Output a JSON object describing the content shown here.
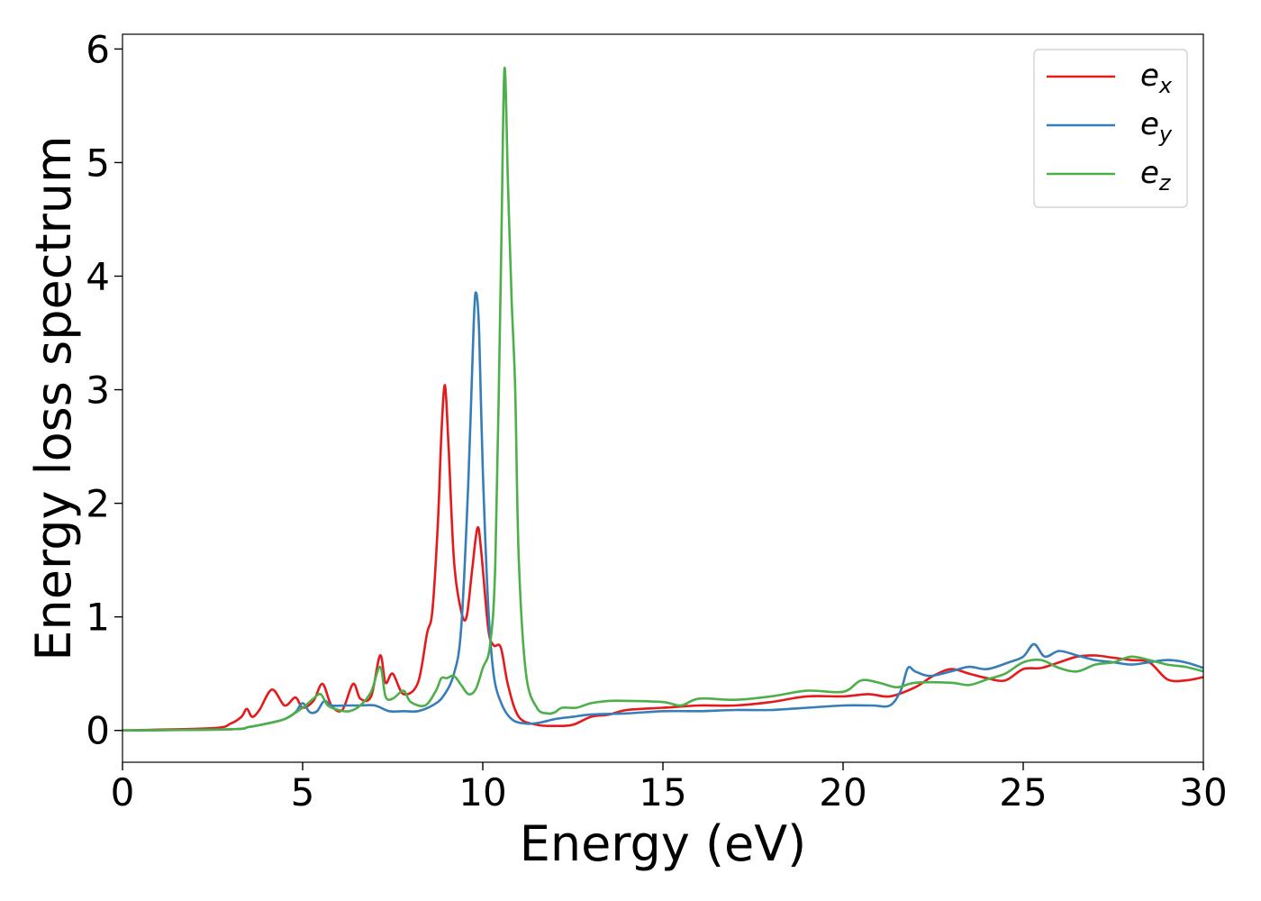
{
  "chart_data": {
    "type": "line",
    "title": "",
    "xlabel": "Energy (eV)",
    "ylabel": "Energy loss spectrum",
    "xlim": [
      0,
      30
    ],
    "ylim": [
      -0.28,
      6.13
    ],
    "xticks": [
      0,
      5,
      10,
      15,
      20,
      25,
      30
    ],
    "yticks": [
      0,
      1,
      2,
      3,
      4,
      5,
      6
    ],
    "grid": false,
    "legend_position": "top-right",
    "series": [
      {
        "name": "e_x",
        "label_base": "e",
        "label_sub": "x",
        "color": "#e41a1c",
        "x": [
          0,
          2.5,
          3.0,
          3.3,
          3.45,
          3.6,
          3.8,
          4.15,
          4.5,
          4.8,
          5.0,
          5.3,
          5.55,
          5.8,
          6.1,
          6.4,
          6.6,
          6.9,
          7.15,
          7.3,
          7.5,
          7.8,
          8.2,
          8.45,
          8.6,
          8.75,
          8.85,
          8.95,
          9.05,
          9.2,
          9.4,
          9.55,
          9.7,
          9.85,
          9.95,
          10.15,
          10.3,
          10.5,
          10.7,
          11.0,
          11.5,
          12.0,
          12.5,
          13.0,
          13.5,
          14.0,
          15.0,
          16.0,
          17.0,
          18.0,
          19.0,
          20.0,
          20.7,
          21.3,
          22.0,
          22.5,
          23.0,
          23.5,
          24.0,
          24.5,
          25.0,
          25.5,
          26.0,
          26.5,
          27.0,
          27.5,
          28.0,
          28.5,
          29.0,
          29.5,
          30.0
        ],
        "y": [
          0.0,
          0.02,
          0.06,
          0.12,
          0.19,
          0.12,
          0.18,
          0.36,
          0.22,
          0.29,
          0.2,
          0.26,
          0.41,
          0.22,
          0.18,
          0.41,
          0.28,
          0.3,
          0.66,
          0.42,
          0.5,
          0.32,
          0.42,
          0.85,
          1.05,
          1.8,
          2.6,
          3.04,
          2.5,
          1.5,
          1.05,
          1.0,
          1.4,
          1.78,
          1.6,
          0.9,
          0.75,
          0.73,
          0.4,
          0.12,
          0.05,
          0.04,
          0.05,
          0.12,
          0.14,
          0.18,
          0.2,
          0.22,
          0.22,
          0.25,
          0.3,
          0.3,
          0.32,
          0.3,
          0.38,
          0.48,
          0.54,
          0.5,
          0.46,
          0.44,
          0.54,
          0.55,
          0.6,
          0.65,
          0.66,
          0.64,
          0.62,
          0.6,
          0.45,
          0.44,
          0.47
        ]
      },
      {
        "name": "e_y",
        "label_base": "e",
        "label_sub": "y",
        "color": "#377eb8",
        "x": [
          0,
          3.0,
          3.5,
          4.0,
          4.5,
          4.8,
          5.0,
          5.2,
          5.4,
          5.6,
          5.8,
          6.2,
          6.6,
          7.0,
          7.4,
          7.8,
          8.2,
          8.6,
          8.9,
          9.2,
          9.4,
          9.6,
          9.75,
          9.82,
          9.9,
          10.0,
          10.15,
          10.3,
          10.5,
          10.8,
          11.2,
          11.6,
          12.0,
          12.5,
          13.0,
          14.0,
          15.0,
          16.0,
          17.0,
          18.0,
          19.0,
          20.0,
          20.8,
          21.3,
          21.6,
          21.8,
          22.0,
          22.4,
          23.0,
          23.5,
          24.0,
          24.6,
          25.0,
          25.3,
          25.6,
          26.0,
          26.5,
          27.0,
          27.5,
          28.0,
          28.5,
          29.0,
          29.5,
          30.0
        ],
        "y": [
          0.0,
          0.01,
          0.03,
          0.06,
          0.1,
          0.16,
          0.24,
          0.16,
          0.17,
          0.26,
          0.22,
          0.22,
          0.22,
          0.22,
          0.17,
          0.17,
          0.17,
          0.22,
          0.3,
          0.5,
          0.9,
          2.2,
          3.6,
          3.85,
          3.5,
          2.3,
          1.1,
          0.5,
          0.25,
          0.1,
          0.06,
          0.07,
          0.1,
          0.12,
          0.14,
          0.15,
          0.17,
          0.17,
          0.18,
          0.18,
          0.2,
          0.22,
          0.22,
          0.22,
          0.35,
          0.55,
          0.52,
          0.48,
          0.52,
          0.56,
          0.54,
          0.6,
          0.65,
          0.76,
          0.65,
          0.7,
          0.66,
          0.62,
          0.6,
          0.58,
          0.6,
          0.62,
          0.6,
          0.55
        ]
      },
      {
        "name": "e_z",
        "label_base": "e",
        "label_sub": "z",
        "color": "#4daf4a",
        "x": [
          0,
          3.0,
          3.5,
          4.0,
          4.5,
          5.0,
          5.3,
          5.5,
          5.7,
          6.0,
          6.3,
          6.6,
          6.9,
          7.15,
          7.3,
          7.5,
          7.8,
          8.0,
          8.4,
          8.7,
          8.85,
          9.0,
          9.2,
          9.4,
          9.6,
          9.8,
          10.0,
          10.2,
          10.35,
          10.5,
          10.6,
          10.7,
          10.8,
          10.9,
          11.0,
          11.2,
          11.5,
          11.8,
          12.0,
          12.2,
          12.6,
          13.0,
          13.5,
          14.0,
          15.0,
          15.5,
          16.0,
          17.0,
          18.0,
          19.0,
          20.0,
          20.5,
          21.0,
          21.5,
          22.0,
          23.0,
          23.5,
          24.0,
          24.5,
          25.0,
          25.5,
          26.0,
          26.5,
          27.0,
          27.5,
          28.0,
          28.5,
          29.0,
          29.5,
          30.0
        ],
        "y": [
          0.0,
          0.01,
          0.03,
          0.06,
          0.1,
          0.2,
          0.28,
          0.32,
          0.22,
          0.18,
          0.17,
          0.22,
          0.34,
          0.56,
          0.3,
          0.28,
          0.35,
          0.25,
          0.22,
          0.35,
          0.46,
          0.46,
          0.48,
          0.4,
          0.32,
          0.36,
          0.55,
          0.75,
          1.5,
          4.0,
          5.82,
          4.8,
          3.8,
          3.0,
          1.5,
          0.5,
          0.2,
          0.15,
          0.16,
          0.2,
          0.2,
          0.24,
          0.26,
          0.26,
          0.25,
          0.22,
          0.28,
          0.27,
          0.3,
          0.35,
          0.34,
          0.44,
          0.42,
          0.38,
          0.42,
          0.42,
          0.4,
          0.45,
          0.5,
          0.6,
          0.62,
          0.55,
          0.52,
          0.58,
          0.6,
          0.65,
          0.62,
          0.58,
          0.56,
          0.52
        ]
      }
    ]
  }
}
